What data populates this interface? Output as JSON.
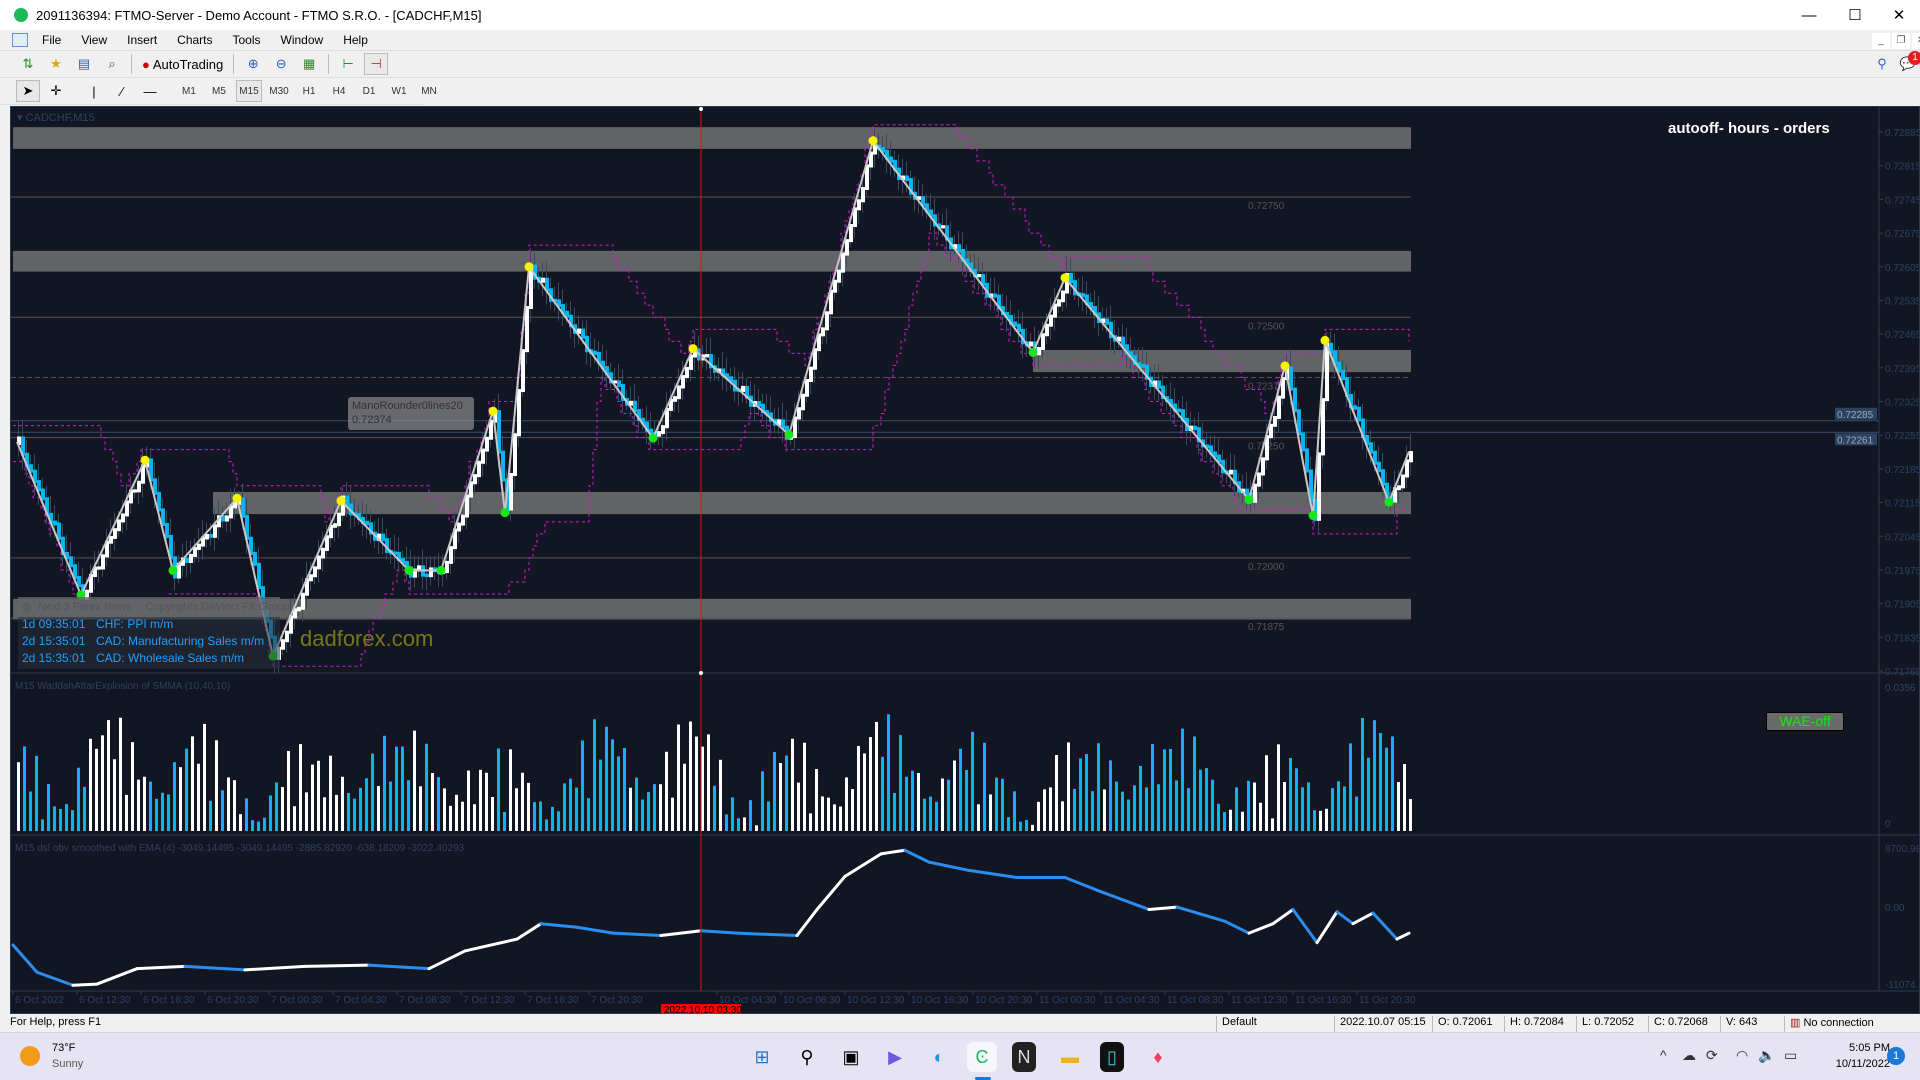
{
  "window": {
    "title": "2091136394: FTMO-Server - Demo Account - FTMO S.R.O. - [CADCHF,M15]",
    "minimize": "—",
    "maximize": "☐",
    "close": "✕"
  },
  "menu": [
    "File",
    "View",
    "Insert",
    "Charts",
    "Tools",
    "Window",
    "Help"
  ],
  "toolbar": {
    "autotrading": "AutoTrading",
    "timeframes": [
      "M1",
      "M5",
      "M15",
      "M30",
      "H1",
      "H4",
      "D1",
      "W1",
      "MN"
    ],
    "selected_timeframe": "M15"
  },
  "notification_count": "1",
  "chart": {
    "symbol_label": "CADCHF,M15",
    "overlay_title": "autooff- hours - orders",
    "mano": {
      "name": "ManoRounder0lines20",
      "price": "0.72374"
    },
    "news": {
      "header": "Next 3 Forex News",
      "copyright": "Copyrights DaVinci FX Group",
      "items": [
        {
          "time": "1d 09:35:01",
          "event": "CHF: PPI m/m"
        },
        {
          "time": "2d 15:35:01",
          "event": "CAD: Manufacturing Sales m/m"
        },
        {
          "time": "2d 15:35:01",
          "event": "CAD: Wholesale Sales m/m"
        }
      ]
    },
    "watermark": "dadforex.com",
    "wae_button": "WAE-off",
    "wae_title": "M15 WaddahAttarExplosion of SMMA (10,40,10)",
    "obv_title": "M15 dsl obv smoothed with EMA (4) -3049.14495 -3049.14495 -2885.82920 -638.18209 -3022.40293",
    "crosshair_time": "2022.10.10 03:30",
    "colors": {
      "bg": "#121622",
      "up": "#ffffff",
      "down": "#0ab4f0",
      "zone": "#6b6b6b",
      "envelope": "#d01ed0",
      "high_dot": "#f5f500",
      "low_dot": "#19e619",
      "crosshair": "#e01010"
    }
  },
  "chart_data": {
    "type": "line",
    "price_axis": [
      "0.72885",
      "0.72815",
      "0.72745",
      "0.72675",
      "0.72605",
      "0.72535",
      "0.72465",
      "0.72395",
      "0.72325",
      "0.72255",
      "0.72185",
      "0.72115",
      "0.72045",
      "0.71975",
      "0.71905",
      "0.71835",
      "0.71765"
    ],
    "price_range": [
      0.71765,
      0.72885
    ],
    "bid": "0.72285",
    "ask": "0.72261",
    "levels": [
      {
        "price": 0.7275,
        "label": "0.72750"
      },
      {
        "price": 0.725,
        "label": "0.72500"
      },
      {
        "price": 0.72375,
        "label": "0.72375",
        "dashed": true
      },
      {
        "price": 0.7225,
        "label": "0.72250"
      },
      {
        "price": 0.72,
        "label": "0.72000"
      },
      {
        "price": 0.71875,
        "label": "0.71875"
      }
    ],
    "zones": [
      {
        "from_bar": 0,
        "high": 0.72895,
        "low": 0.7285
      },
      {
        "from_bar": 0,
        "high": 0.72638,
        "low": 0.72595
      },
      {
        "from_bar": 255,
        "high": 0.72432,
        "low": 0.72386
      },
      {
        "from_bar": 50,
        "high": 0.72137,
        "low": 0.72091
      },
      {
        "from_bar": 0,
        "high": 0.71915,
        "low": 0.71872
      }
    ],
    "zigzag": [
      [
        1,
        0.72241
      ],
      [
        17,
        0.71923
      ],
      [
        33,
        0.72203
      ],
      [
        40,
        0.71974
      ],
      [
        56,
        0.72124
      ],
      [
        65,
        0.71796
      ],
      [
        82,
        0.72119
      ],
      [
        99,
        0.71974
      ],
      [
        107,
        0.71974
      ],
      [
        120,
        0.72305
      ],
      [
        123,
        0.72094
      ],
      [
        129,
        0.72605
      ],
      [
        160,
        0.72249
      ],
      [
        170,
        0.72435
      ],
      [
        194,
        0.72256
      ],
      [
        215,
        0.72867
      ],
      [
        255,
        0.72427
      ],
      [
        263,
        0.72582
      ],
      [
        309,
        0.72121
      ],
      [
        318,
        0.72399
      ],
      [
        325,
        0.72088
      ],
      [
        328,
        0.72452
      ],
      [
        344,
        0.72116
      ],
      [
        349,
        0.72221
      ]
    ],
    "total_bars": 350,
    "crosshair_bar": 172,
    "time_axis": [
      {
        "bar": 0,
        "label": "6 Oct 2022"
      },
      {
        "bar": 16,
        "label": "6 Oct 12:30"
      },
      {
        "bar": 32,
        "label": "6 Oct 16:30"
      },
      {
        "bar": 48,
        "label": "6 Oct 20:30"
      },
      {
        "bar": 64,
        "label": "7 Oct 00:30"
      },
      {
        "bar": 80,
        "label": "7 Oct 04:30"
      },
      {
        "bar": 96,
        "label": "7 Oct 08:30"
      },
      {
        "bar": 112,
        "label": "7 Oct 12:30"
      },
      {
        "bar": 128,
        "label": "7 Oct 16:30"
      },
      {
        "bar": 144,
        "label": "7 Oct 20:30"
      },
      {
        "bar": 176,
        "label": "10 Oct 04:30"
      },
      {
        "bar": 192,
        "label": "10 Oct 08:30"
      },
      {
        "bar": 208,
        "label": "10 Oct 12:30"
      },
      {
        "bar": 224,
        "label": "10 Oct 16:30"
      },
      {
        "bar": 240,
        "label": "10 Oct 20:30"
      },
      {
        "bar": 256,
        "label": "11 Oct 00:30"
      },
      {
        "bar": 272,
        "label": "11 Oct 04:30"
      },
      {
        "bar": 288,
        "label": "11 Oct 08:30"
      },
      {
        "bar": 304,
        "label": "11 Oct 12:30"
      },
      {
        "bar": 320,
        "label": "11 Oct 16:30"
      },
      {
        "bar": 336,
        "label": "11 Oct 20:30"
      }
    ],
    "wae": {
      "axis": [
        "0.0356",
        "0"
      ],
      "max": 0.0356
    },
    "obv": {
      "axis": [
        "8700.981",
        "0.00",
        "-11074.4"
      ],
      "range": [
        -11074.4,
        8700.98
      ],
      "points": [
        [
          0,
          -5062
        ],
        [
          6,
          -8701
        ],
        [
          15,
          -10441
        ],
        [
          21,
          -10283
        ],
        [
          31,
          -8226
        ],
        [
          43,
          -7910
        ],
        [
          58,
          -8385
        ],
        [
          73,
          -7910
        ],
        [
          89,
          -7752
        ],
        [
          104,
          -8226
        ],
        [
          113,
          -5853
        ],
        [
          126,
          -4271
        ],
        [
          132,
          -2215
        ],
        [
          141,
          -2690
        ],
        [
          150,
          -3480
        ],
        [
          162,
          -3797
        ],
        [
          172,
          -3164
        ],
        [
          181,
          -3480
        ],
        [
          196,
          -3797
        ],
        [
          201,
          -316
        ],
        [
          208,
          4113
        ],
        [
          217,
          7119
        ],
        [
          223,
          7594
        ],
        [
          229,
          6012
        ],
        [
          239,
          4904
        ],
        [
          251,
          3955
        ],
        [
          263,
          3955
        ],
        [
          272,
          2057
        ],
        [
          284,
          -316
        ],
        [
          291,
          0
        ],
        [
          303,
          -1898
        ],
        [
          309,
          -3480
        ],
        [
          315,
          -2215
        ],
        [
          320,
          -316
        ],
        [
          326,
          -4746
        ],
        [
          331,
          -633
        ],
        [
          335,
          -2215
        ],
        [
          340,
          -792
        ],
        [
          346,
          -4271
        ],
        [
          349,
          -3480
        ]
      ]
    }
  },
  "statusbar": {
    "help": "For Help, press F1",
    "profile": "Default",
    "datetime": "2022.10.07 05:15",
    "open": "O: 0.72061",
    "high": "H: 0.72084",
    "low": "L: 0.72052",
    "close": "C: 0.72068",
    "volume": "V: 643",
    "connection": "No connection"
  },
  "taskbar": {
    "temp": "73°F",
    "weather": "Sunny",
    "time": "5:05 PM",
    "date": "10/11/2022",
    "notifications": "1"
  }
}
